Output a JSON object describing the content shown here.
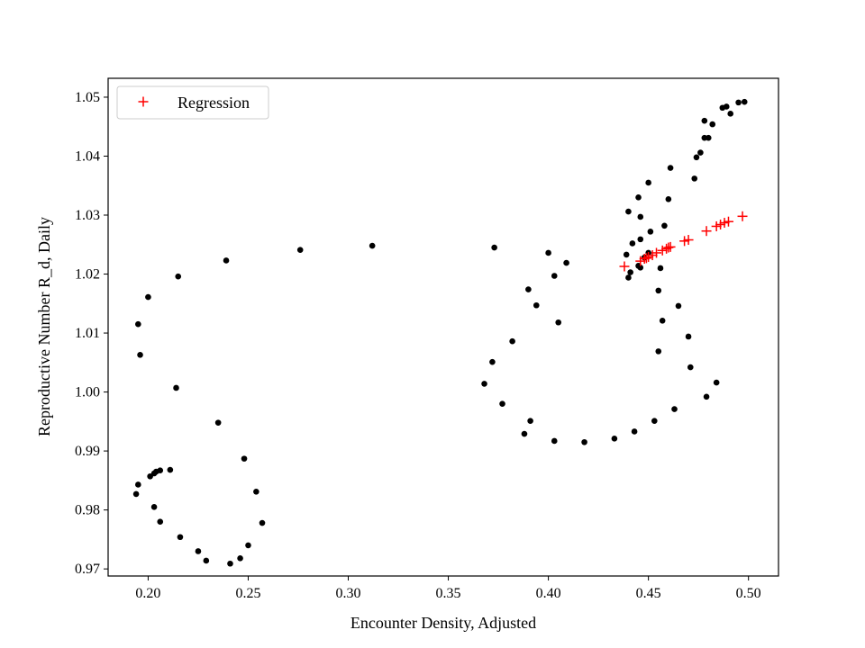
{
  "chart_data": {
    "type": "scatter",
    "title": "",
    "xlabel": "Encounter Density, Adjusted",
    "ylabel": "Reproductive Number R_d, Daily",
    "xlim": [
      0.18,
      0.515
    ],
    "ylim": [
      0.9688,
      1.0532
    ],
    "xticks": [
      0.2,
      0.25,
      0.3,
      0.35,
      0.4,
      0.45,
      0.5
    ],
    "xtick_labels": [
      "0.20",
      "0.25",
      "0.30",
      "0.35",
      "0.40",
      "0.45",
      "0.50"
    ],
    "yticks": [
      0.97,
      0.98,
      0.99,
      1.0,
      1.01,
      1.02,
      1.03,
      1.04,
      1.05
    ],
    "ytick_labels": [
      "0.97",
      "0.98",
      "0.99",
      "1.00",
      "1.01",
      "1.02",
      "1.03",
      "1.04",
      "1.05"
    ],
    "grid": false,
    "legend": {
      "position": "top-left",
      "entries": [
        "Regression"
      ]
    },
    "series": [
      {
        "marker": "dot",
        "color": "#000000",
        "points": [
          [
            0.195,
            1.0115
          ],
          [
            0.196,
            1.0063
          ],
          [
            0.2,
            1.0161
          ],
          [
            0.215,
            1.0196
          ],
          [
            0.214,
            1.0007
          ],
          [
            0.195,
            0.9843
          ],
          [
            0.194,
            0.9827
          ],
          [
            0.201,
            0.9857
          ],
          [
            0.203,
            0.9862
          ],
          [
            0.204,
            0.9865
          ],
          [
            0.206,
            0.9867
          ],
          [
            0.211,
            0.9868
          ],
          [
            0.203,
            0.9805
          ],
          [
            0.206,
            0.978
          ],
          [
            0.216,
            0.9754
          ],
          [
            0.225,
            0.973
          ],
          [
            0.229,
            0.9714
          ],
          [
            0.241,
            0.9709
          ],
          [
            0.246,
            0.9718
          ],
          [
            0.25,
            0.974
          ],
          [
            0.257,
            0.9778
          ],
          [
            0.254,
            0.9831
          ],
          [
            0.248,
            0.9887
          ],
          [
            0.235,
            0.9948
          ],
          [
            0.239,
            1.0223
          ],
          [
            0.276,
            1.0241
          ],
          [
            0.312,
            1.0248
          ],
          [
            0.373,
            1.0245
          ],
          [
            0.368,
            1.0014
          ],
          [
            0.372,
            1.0051
          ],
          [
            0.377,
            0.998
          ],
          [
            0.382,
            1.0086
          ],
          [
            0.388,
            0.9929
          ],
          [
            0.39,
            1.0174
          ],
          [
            0.391,
            0.9951
          ],
          [
            0.394,
            1.0147
          ],
          [
            0.4,
            1.0236
          ],
          [
            0.403,
            1.0197
          ],
          [
            0.405,
            1.0118
          ],
          [
            0.409,
            1.0219
          ],
          [
            0.403,
            0.9917
          ],
          [
            0.418,
            0.9915
          ],
          [
            0.433,
            0.9921
          ],
          [
            0.443,
            0.9933
          ],
          [
            0.453,
            0.9951
          ],
          [
            0.463,
            0.9971
          ],
          [
            0.479,
            0.9992
          ],
          [
            0.484,
            1.0016
          ],
          [
            0.471,
            1.0042
          ],
          [
            0.47,
            1.0094
          ],
          [
            0.455,
            1.0069
          ],
          [
            0.457,
            1.0121
          ],
          [
            0.465,
            1.0146
          ],
          [
            0.455,
            1.0172
          ],
          [
            0.456,
            1.021
          ],
          [
            0.44,
            1.0194
          ],
          [
            0.441,
            1.0203
          ],
          [
            0.439,
            1.0233
          ],
          [
            0.442,
            1.0252
          ],
          [
            0.445,
            1.0214
          ],
          [
            0.446,
            1.0211
          ],
          [
            0.448,
            1.0228
          ],
          [
            0.45,
            1.0236
          ],
          [
            0.451,
            1.0272
          ],
          [
            0.446,
            1.0259
          ],
          [
            0.44,
            1.0306
          ],
          [
            0.446,
            1.0297
          ],
          [
            0.445,
            1.033
          ],
          [
            0.45,
            1.0355
          ],
          [
            0.458,
            1.0282
          ],
          [
            0.46,
            1.0327
          ],
          [
            0.461,
            1.038
          ],
          [
            0.473,
            1.0362
          ],
          [
            0.474,
            1.0398
          ],
          [
            0.476,
            1.0406
          ],
          [
            0.478,
            1.0431
          ],
          [
            0.48,
            1.0431
          ],
          [
            0.478,
            1.046
          ],
          [
            0.482,
            1.0454
          ],
          [
            0.487,
            1.0482
          ],
          [
            0.489,
            1.0484
          ],
          [
            0.491,
            1.0472
          ],
          [
            0.495,
            1.0491
          ],
          [
            0.498,
            1.0492
          ]
        ]
      },
      {
        "name": "Regression",
        "marker": "plus",
        "color": "#ff0000",
        "points": [
          [
            0.438,
            1.0213
          ],
          [
            0.446,
            1.0222
          ],
          [
            0.448,
            1.0226
          ],
          [
            0.449,
            1.0227
          ],
          [
            0.45,
            1.0229
          ],
          [
            0.452,
            1.0232
          ],
          [
            0.454,
            1.0236
          ],
          [
            0.457,
            1.024
          ],
          [
            0.459,
            1.0243
          ],
          [
            0.46,
            1.0245
          ],
          [
            0.461,
            1.0246
          ],
          [
            0.468,
            1.0256
          ],
          [
            0.47,
            1.0258
          ],
          [
            0.479,
            1.0273
          ],
          [
            0.484,
            1.0281
          ],
          [
            0.486,
            1.0284
          ],
          [
            0.488,
            1.0287
          ],
          [
            0.49,
            1.0289
          ],
          [
            0.497,
            1.0298
          ]
        ]
      }
    ]
  }
}
